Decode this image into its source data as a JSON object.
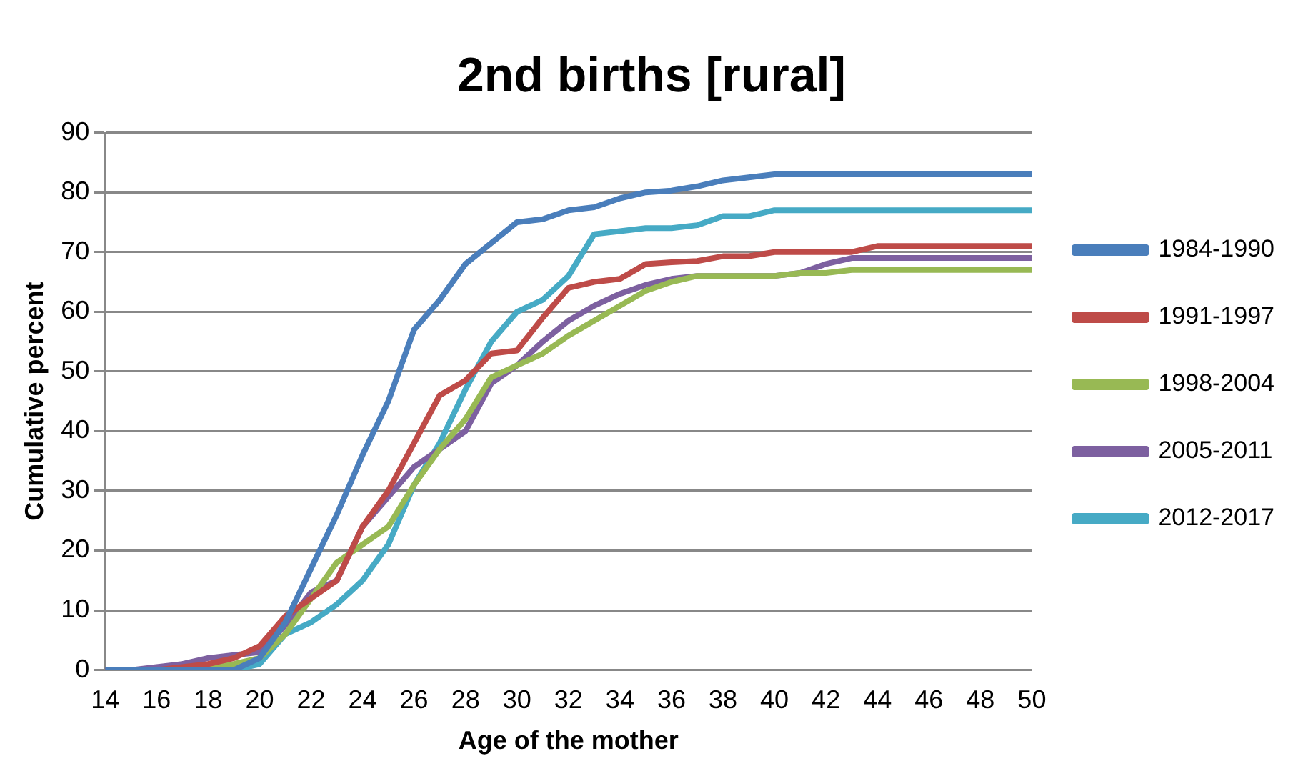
{
  "chart_data": {
    "type": "line",
    "title": "2nd births [rural]",
    "xlabel": "Age of the mother",
    "ylabel": "Cumulative percent",
    "categories": [
      "14",
      null,
      "16",
      null,
      "18",
      null,
      "20",
      null,
      "22",
      null,
      "24",
      null,
      "26",
      null,
      "28",
      null,
      "30",
      null,
      "32",
      null,
      "34",
      null,
      "36",
      null,
      "38",
      null,
      "40",
      null,
      "42",
      null,
      "44",
      null,
      "46",
      null,
      "48",
      null,
      "50"
    ],
    "ylim": [
      0,
      90
    ],
    "yticks": [
      0,
      10,
      20,
      30,
      40,
      50,
      60,
      70,
      80,
      90
    ],
    "grid": "y",
    "legend": "right",
    "marker": "none",
    "series": [
      {
        "name": "1984-1990",
        "color": "#4a7ebb",
        "values": [
          0,
          0,
          0,
          0,
          0,
          0,
          2,
          8,
          17,
          26,
          36,
          45,
          57,
          62,
          68,
          71.5,
          75,
          75.5,
          77,
          77.5,
          79,
          80,
          80.3,
          81,
          82,
          82.5,
          83,
          83,
          83,
          83,
          83,
          83,
          83,
          83,
          83,
          83,
          83
        ]
      },
      {
        "name": "1991-1997",
        "color": "#be4b48",
        "values": [
          0,
          0,
          0,
          0.5,
          1,
          2,
          4,
          9,
          12,
          15,
          24,
          30,
          38,
          46,
          48.5,
          53,
          53.5,
          59,
          64,
          65,
          65.5,
          68,
          68.3,
          68.5,
          69.3,
          69.3,
          70,
          70,
          70,
          70,
          71,
          71,
          71,
          71,
          71,
          71,
          71
        ]
      },
      {
        "name": "1998-2004",
        "color": "#98b954",
        "values": [
          null,
          null,
          null,
          0,
          0.5,
          1,
          2,
          6,
          12,
          18,
          21,
          24,
          31,
          37,
          42,
          49,
          51,
          53,
          56,
          58.5,
          61,
          63.5,
          65,
          66,
          66,
          66,
          66,
          66.5,
          66.5,
          67,
          67,
          67,
          67,
          67,
          67,
          67,
          67
        ]
      },
      {
        "name": "2005-2011",
        "color": "#7d60a0",
        "values": [
          0,
          0,
          0.5,
          1,
          2,
          2.5,
          3,
          7.5,
          13,
          15,
          24,
          29,
          34,
          37,
          40,
          48,
          51,
          55,
          58.5,
          61,
          63,
          64.5,
          65.5,
          66,
          66,
          66,
          66,
          66.5,
          68,
          69,
          69,
          69,
          69,
          69,
          69,
          69,
          69
        ]
      },
      {
        "name": "2012-2017",
        "color": "#46aac5",
        "values": [
          null,
          null,
          null,
          0,
          0,
          0,
          1,
          6,
          8,
          11,
          15,
          21,
          31,
          38,
          47,
          55,
          60,
          62,
          66,
          73,
          73.5,
          74,
          74,
          74.5,
          76,
          76,
          77,
          77,
          77,
          77,
          77,
          77,
          77,
          77,
          77,
          77,
          77
        ]
      }
    ]
  }
}
